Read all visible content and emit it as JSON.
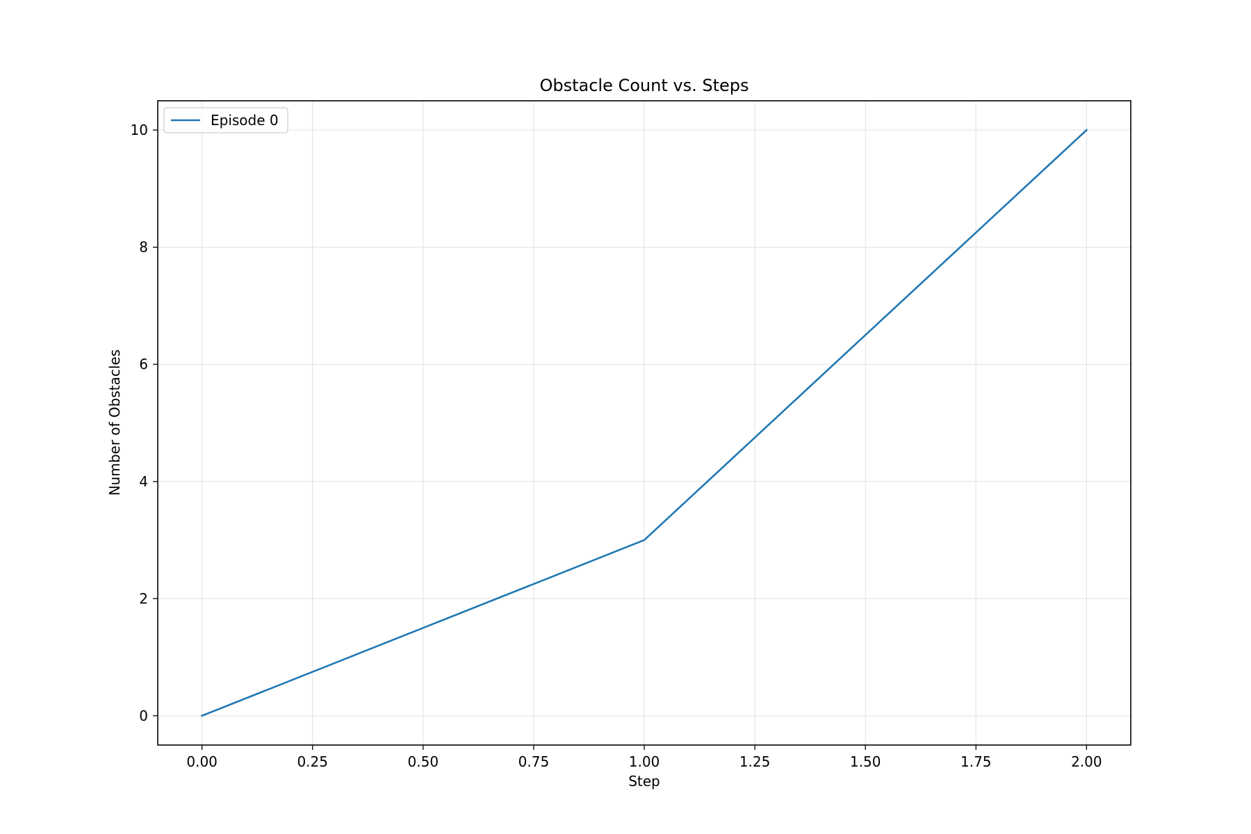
{
  "chart_data": {
    "type": "line",
    "title": "Obstacle Count vs. Steps",
    "xlabel": "Step",
    "ylabel": "Number of Obstacles",
    "xlim": [
      -0.1,
      2.1
    ],
    "ylim": [
      -0.5,
      10.5
    ],
    "xticks": [
      0.0,
      0.25,
      0.5,
      0.75,
      1.0,
      1.25,
      1.5,
      1.75,
      2.0
    ],
    "xtick_labels": [
      "0.00",
      "0.25",
      "0.50",
      "0.75",
      "1.00",
      "1.25",
      "1.50",
      "1.75",
      "2.00"
    ],
    "yticks": [
      0,
      2,
      4,
      6,
      8,
      10
    ],
    "ytick_labels": [
      "0",
      "2",
      "4",
      "6",
      "8",
      "10"
    ],
    "grid": true,
    "legend_position": "top-left",
    "series": [
      {
        "name": "Episode 0",
        "color": "#1f77b4",
        "x": [
          0,
          1,
          2
        ],
        "y": [
          0,
          3,
          10
        ]
      }
    ]
  }
}
